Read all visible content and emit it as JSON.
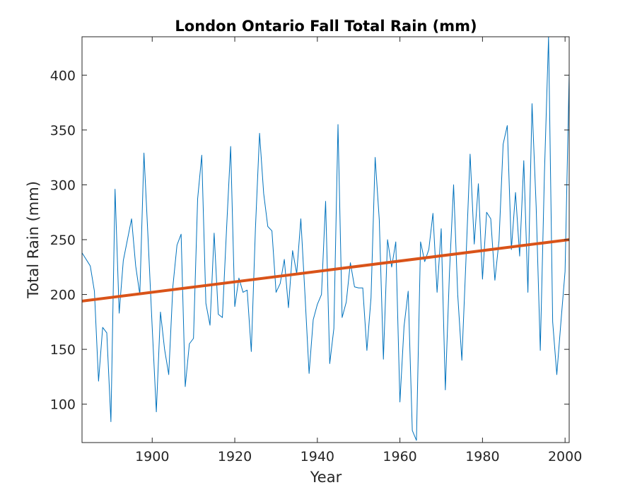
{
  "chart_data": {
    "type": "line",
    "title": "London Ontario Fall Total Rain (mm)",
    "xlabel": "Year",
    "ylabel": "Total Rain (mm)",
    "xlim": [
      1883,
      2001
    ],
    "ylim": [
      65,
      435
    ],
    "xticks": [
      1900,
      1920,
      1940,
      1960,
      1980,
      2000
    ],
    "yticks": [
      100,
      150,
      200,
      250,
      300,
      350,
      400
    ],
    "grid": false,
    "series": [
      {
        "color": "#0072BD",
        "x": [
          1883,
          1884,
          1885,
          1886,
          1887,
          1888,
          1889,
          1890,
          1891,
          1892,
          1893,
          1894,
          1895,
          1896,
          1897,
          1898,
          1899,
          1900,
          1901,
          1902,
          1903,
          1904,
          1905,
          1906,
          1907,
          1908,
          1909,
          1910,
          1911,
          1912,
          1913,
          1914,
          1915,
          1916,
          1917,
          1918,
          1919,
          1920,
          1921,
          1922,
          1923,
          1924,
          1925,
          1926,
          1927,
          1928,
          1929,
          1930,
          1931,
          1932,
          1933,
          1934,
          1935,
          1936,
          1937,
          1938,
          1939,
          1940,
          1941,
          1942,
          1943,
          1944,
          1945,
          1946,
          1947,
          1948,
          1949,
          1950,
          1951,
          1952,
          1953,
          1954,
          1955,
          1956,
          1957,
          1958,
          1959,
          1960,
          1961,
          1962,
          1963,
          1964,
          1965,
          1966,
          1967,
          1968,
          1969,
          1970,
          1971,
          1972,
          1973,
          1974,
          1975,
          1976,
          1977,
          1978,
          1979,
          1980,
          1981,
          1982,
          1983,
          1984,
          1985,
          1986,
          1987,
          1988,
          1989,
          1990,
          1991,
          1992,
          1993,
          1994,
          1995,
          1996,
          1997,
          1998,
          1999,
          2000,
          2001
        ],
        "y": [
          238,
          232,
          226,
          203,
          121,
          170,
          165,
          84,
          296,
          183,
          231,
          250,
          269,
          226,
          200,
          329,
          251,
          170,
          93,
          184,
          150,
          127,
          207,
          245,
          255,
          116,
          155,
          160,
          287,
          327,
          192,
          172,
          256,
          182,
          179,
          259,
          335,
          189,
          215,
          202,
          204,
          148,
          260,
          347,
          292,
          262,
          258,
          202,
          210,
          232,
          188,
          240,
          219,
          269,
          200,
          128,
          177,
          191,
          200,
          285,
          137,
          169,
          355,
          179,
          193,
          229,
          207,
          206,
          206,
          149,
          197,
          325,
          268,
          141,
          250,
          225,
          248,
          102,
          171,
          203,
          76,
          67,
          248,
          230,
          241,
          274,
          202,
          260,
          113,
          220,
          300,
          200,
          140,
          232,
          328,
          246,
          301,
          214,
          275,
          269,
          213,
          249,
          337,
          354,
          241,
          293,
          235,
          322,
          202,
          374,
          280,
          149,
          310,
          435,
          175,
          127,
          175,
          221,
          402
        ]
      },
      {
        "color": "#D95319",
        "x": [
          1883,
          2001
        ],
        "y": [
          194,
          250
        ]
      }
    ]
  }
}
